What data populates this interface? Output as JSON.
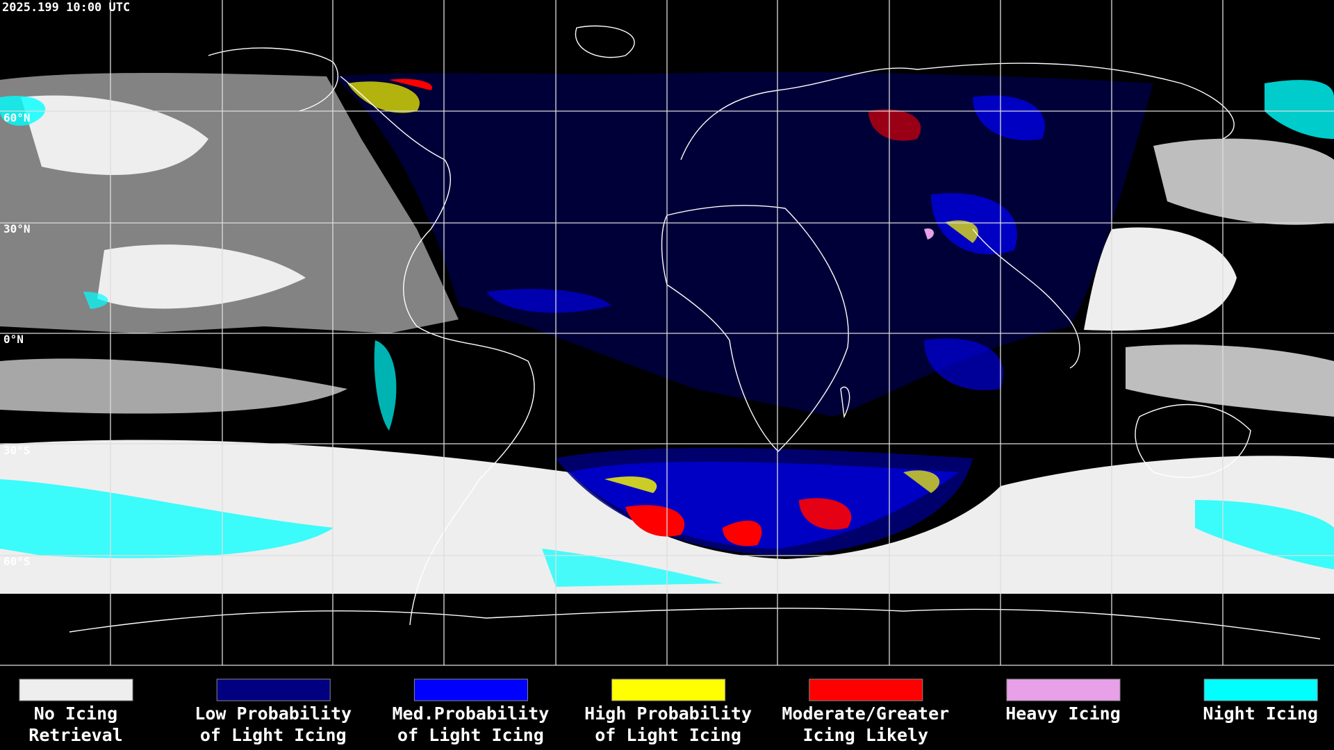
{
  "header": {
    "timestamp": "2025.199 10:00 UTC"
  },
  "map": {
    "latitude_labels": [
      "60°N",
      "30°N",
      "0°N",
      "30°S",
      "60°S"
    ]
  },
  "legend": {
    "items": [
      {
        "lines": [
          "No Icing",
          "Retrieval"
        ],
        "color": "#eeeeee"
      },
      {
        "lines": [
          "Low Probability",
          "of Light Icing"
        ],
        "color": "#000080"
      },
      {
        "lines": [
          "Med.Probability",
          "of Light Icing"
        ],
        "color": "#0000ff"
      },
      {
        "lines": [
          "High Probability",
          "of Light Icing"
        ],
        "color": "#ffff00"
      },
      {
        "lines": [
          "Moderate/Greater",
          "Icing Likely"
        ],
        "color": "#ff0000"
      },
      {
        "lines": [
          "Heavy Icing"
        ],
        "color": "#e8a0e8"
      },
      {
        "lines": [
          "Night Icing"
        ],
        "color": "#00ffff"
      }
    ]
  }
}
